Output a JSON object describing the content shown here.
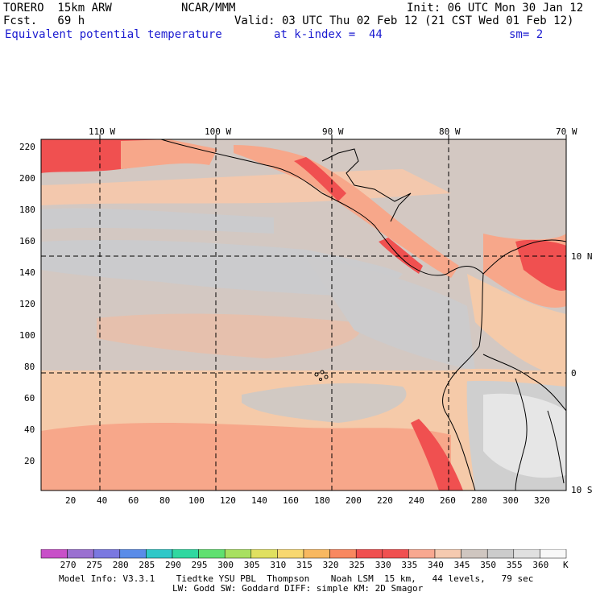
{
  "header": {
    "model": "TORERO  15km ARW",
    "center": "NCAR/MMM",
    "init": "Init: 06 UTC Mon 30 Jan 12",
    "fcst": "Fcst.   69 h",
    "valid": "Valid: 03 UTC Thu 02 Feb 12 (21 CST Wed 01 Feb 12)",
    "field": "Equivalent potential temperature",
    "level": "at k-index =  44",
    "smooth": "sm= 2"
  },
  "top_axis": [
    "110 W",
    "100 W",
    "90 W",
    "80 W",
    "70 W"
  ],
  "right_axis": [
    "10 N",
    "0",
    "10 S"
  ],
  "left_axis": [
    "220",
    "200",
    "180",
    "160",
    "140",
    "120",
    "100",
    "80",
    "60",
    "40",
    "20"
  ],
  "bottom_axis": [
    "20",
    "40",
    "60",
    "80",
    "100",
    "120",
    "140",
    "160",
    "180",
    "200",
    "220",
    "240",
    "260",
    "280",
    "300",
    "320"
  ],
  "colorbar": {
    "labels": [
      "270",
      "275",
      "280",
      "285",
      "290",
      "295",
      "300",
      "305",
      "310",
      "315",
      "320",
      "325",
      "330",
      "335",
      "340",
      "345",
      "350",
      "355",
      "360",
      "K"
    ],
    "colors": [
      "#c850c8",
      "#9a70d0",
      "#7a78e0",
      "#5a8ce8",
      "#30c8c8",
      "#30d8a0",
      "#60e070",
      "#a8e060",
      "#e0e060",
      "#f8d870",
      "#f8b860",
      "#f88860",
      "#f05050",
      "#f05050",
      "#f8a890",
      "#f5cab0",
      "#cfc6c0",
      "#cccccc",
      "#e0e0e0",
      "#f8f8f8"
    ]
  },
  "footer": {
    "line1": "Model Info: V3.3.1    Tiedtke YSU PBL  Thompson    Noah LSM  15 km,   44 levels,   79 sec",
    "line2": "LW: Godd SW: Goddard DIFF: simple KM: 2D Smagor"
  }
}
